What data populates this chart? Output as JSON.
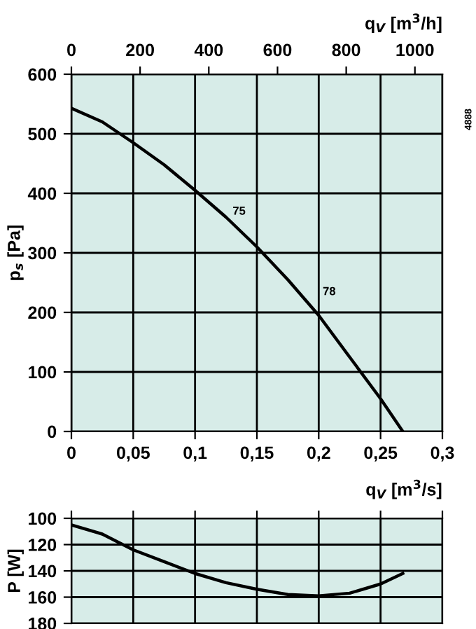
{
  "chart_data": [
    {
      "type": "line",
      "xlabel": "q$_{V}$ [m$^{3}$/s]",
      "ylabel": "p$_{s}$ [Pa]",
      "x2label": "q$_{V}$ [m$^{3}$/h]",
      "xlim": [
        0,
        0.3
      ],
      "xticks": [
        {
          "value": 0,
          "label": "0"
        },
        {
          "value": 0.05,
          "label": "0,05"
        },
        {
          "value": 0.1,
          "label": "0,1"
        },
        {
          "value": 0.15,
          "label": "0,15"
        },
        {
          "value": 0.2,
          "label": "0,2"
        },
        {
          "value": 0.25,
          "label": "0,25"
        },
        {
          "value": 0.3,
          "label": "0,3"
        }
      ],
      "x2lim": [
        0,
        1080
      ],
      "x2ticks": [
        0,
        200,
        400,
        600,
        800,
        1000
      ],
      "ylim": [
        0,
        600
      ],
      "yticks": [
        0,
        100,
        200,
        300,
        400,
        500,
        600
      ],
      "grid": true,
      "series": [
        {
          "color": "#000000",
          "x": [
            0,
            0.025,
            0.05,
            0.075,
            0.1,
            0.125,
            0.15,
            0.175,
            0.2,
            0.225,
            0.25,
            0.268
          ],
          "values": [
            543,
            520,
            485,
            448,
            405,
            360,
            310,
            255,
            195,
            125,
            55,
            0
          ]
        }
      ],
      "annotations": [
        "75",
        "78",
        "4888"
      ]
    },
    {
      "type": "line",
      "ylabel": "P [W]",
      "xlim": [
        0,
        0.3
      ],
      "ylim": [
        180,
        100
      ],
      "yticks": [
        100,
        120,
        140,
        160,
        180
      ],
      "grid": true,
      "tick_labels": "y",
      "series": [
        {
          "color": "#000000",
          "x": [
            0,
            0.025,
            0.05,
            0.075,
            0.1,
            0.125,
            0.15,
            0.175,
            0.2,
            0.225,
            0.25,
            0.268
          ],
          "values": [
            105,
            112,
            124,
            133,
            142,
            149,
            154,
            158,
            159,
            157,
            150,
            142
          ]
        }
      ]
    }
  ]
}
